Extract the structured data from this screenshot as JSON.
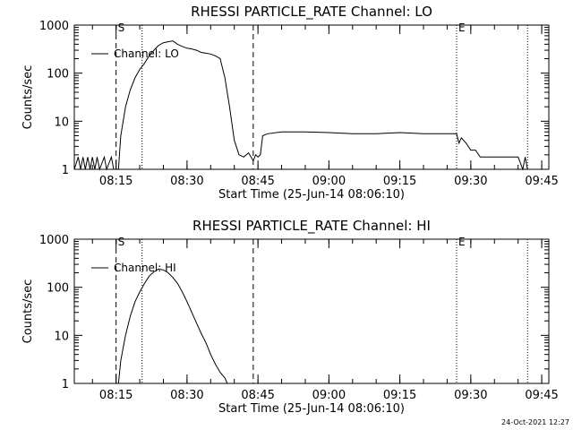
{
  "footer": {
    "timestamp": "24-Oct-2021 12:27"
  },
  "chart_data": [
    {
      "type": "line",
      "title": "RHESSI PARTICLE_RATE Channel: LO",
      "xlabel": "Start Time (25-Jun-14 08:06:10)",
      "ylabel": "Counts/sec",
      "y_scale": "log",
      "ylim": [
        1,
        1000
      ],
      "xlim": [
        "08:06:10",
        "09:46:30"
      ],
      "x_ticks": [
        "08:15",
        "08:30",
        "08:45",
        "09:00",
        "09:15",
        "09:30",
        "09:45"
      ],
      "y_ticks": [
        "1",
        "10",
        "100",
        "1000"
      ],
      "legend": {
        "position": "top-left",
        "label": "Channel: LO"
      },
      "markers": [
        {
          "time": "08:15:00",
          "style": "dashed",
          "label": "S"
        },
        {
          "time": "08:20:30",
          "style": "dotted",
          "label": ""
        },
        {
          "time": "08:44:00",
          "style": "dashed",
          "label": ""
        },
        {
          "time": "09:27:00",
          "style": "dotted",
          "label": "E"
        },
        {
          "time": "09:42:00",
          "style": "dotted",
          "label": ""
        }
      ],
      "series": [
        {
          "name": "Channel: LO",
          "points": [
            [
              "08:06:10",
              1
            ],
            [
              "08:07:00",
              1.8
            ],
            [
              "08:07:30",
              1
            ],
            [
              "08:08:00",
              1.8
            ],
            [
              "08:08:30",
              1
            ],
            [
              "08:09:00",
              1.8
            ],
            [
              "08:09:30",
              1
            ],
            [
              "08:10:00",
              1.8
            ],
            [
              "08:10:30",
              1
            ],
            [
              "08:11:00",
              1.8
            ],
            [
              "08:11:30",
              1
            ],
            [
              "08:12:30",
              1.8
            ],
            [
              "08:13:00",
              1
            ],
            [
              "08:14:00",
              1.8
            ],
            [
              "08:14:30",
              1
            ],
            [
              "08:15:30",
              1
            ],
            [
              "08:16:00",
              5
            ],
            [
              "08:17:00",
              20
            ],
            [
              "08:18:00",
              45
            ],
            [
              "08:19:00",
              80
            ],
            [
              "08:20:00",
              120
            ],
            [
              "08:21:00",
              160
            ],
            [
              "08:22:00",
              230
            ],
            [
              "08:23:00",
              300
            ],
            [
              "08:24:00",
              380
            ],
            [
              "08:25:00",
              430
            ],
            [
              "08:26:00",
              450
            ],
            [
              "08:27:00",
              470
            ],
            [
              "08:28:00",
              400
            ],
            [
              "08:29:00",
              360
            ],
            [
              "08:30:00",
              330
            ],
            [
              "08:31:00",
              320
            ],
            [
              "08:32:00",
              300
            ],
            [
              "08:33:00",
              270
            ],
            [
              "08:34:00",
              260
            ],
            [
              "08:35:00",
              250
            ],
            [
              "08:36:00",
              230
            ],
            [
              "08:37:00",
              200
            ],
            [
              "08:38:00",
              80
            ],
            [
              "08:39:00",
              20
            ],
            [
              "08:40:00",
              4
            ],
            [
              "08:41:00",
              2
            ],
            [
              "08:42:00",
              1.8
            ],
            [
              "08:43:00",
              2.2
            ],
            [
              "08:44:00",
              1.5
            ],
            [
              "08:44:30",
              2
            ],
            [
              "08:45:00",
              1.8
            ],
            [
              "08:45:30",
              2
            ],
            [
              "08:46:00",
              5
            ],
            [
              "08:47:00",
              5.5
            ],
            [
              "08:50:00",
              6
            ],
            [
              "08:55:00",
              6
            ],
            [
              "09:00:00",
              5.8
            ],
            [
              "09:05:00",
              5.5
            ],
            [
              "09:10:00",
              5.5
            ],
            [
              "09:15:00",
              5.8
            ],
            [
              "09:20:00",
              5.5
            ],
            [
              "09:25:00",
              5.5
            ],
            [
              "09:27:00",
              5.5
            ],
            [
              "09:27:30",
              3.5
            ],
            [
              "09:28:00",
              4.5
            ],
            [
              "09:29:00",
              3.5
            ],
            [
              "09:30:00",
              2.5
            ],
            [
              "09:31:00",
              2.5
            ],
            [
              "09:32:00",
              1.8
            ],
            [
              "09:40:00",
              1.8
            ],
            [
              "09:41:00",
              1
            ],
            [
              "09:41:30",
              1.8
            ],
            [
              "09:42:00",
              1
            ]
          ]
        }
      ]
    },
    {
      "type": "line",
      "title": "RHESSI PARTICLE_RATE Channel: HI",
      "xlabel": "Start Time (25-Jun-14 08:06:10)",
      "ylabel": "Counts/sec",
      "y_scale": "log",
      "ylim": [
        1,
        1000
      ],
      "xlim": [
        "08:06:10",
        "09:46:30"
      ],
      "x_ticks": [
        "08:15",
        "08:30",
        "08:45",
        "09:00",
        "09:15",
        "09:30",
        "09:45"
      ],
      "y_ticks": [
        "1",
        "10",
        "100",
        "1000"
      ],
      "legend": {
        "position": "top-left",
        "label": "Channel: HI"
      },
      "markers": [
        {
          "time": "08:15:00",
          "style": "dashed",
          "label": "S"
        },
        {
          "time": "08:20:30",
          "style": "dotted",
          "label": ""
        },
        {
          "time": "08:44:00",
          "style": "dashed",
          "label": ""
        },
        {
          "time": "09:27:00",
          "style": "dotted",
          "label": "E"
        },
        {
          "time": "09:42:00",
          "style": "dotted",
          "label": ""
        }
      ],
      "series": [
        {
          "name": "Channel: HI",
          "points": [
            [
              "08:15:30",
              1
            ],
            [
              "08:16:00",
              3
            ],
            [
              "08:17:00",
              10
            ],
            [
              "08:18:00",
              25
            ],
            [
              "08:19:00",
              50
            ],
            [
              "08:20:00",
              80
            ],
            [
              "08:21:00",
              120
            ],
            [
              "08:22:00",
              170
            ],
            [
              "08:23:00",
              210
            ],
            [
              "08:24:00",
              240
            ],
            [
              "08:25:00",
              230
            ],
            [
              "08:26:00",
              200
            ],
            [
              "08:27:00",
              160
            ],
            [
              "08:28:00",
              120
            ],
            [
              "08:29:00",
              80
            ],
            [
              "08:30:00",
              50
            ],
            [
              "08:31:00",
              30
            ],
            [
              "08:32:00",
              18
            ],
            [
              "08:33:00",
              11
            ],
            [
              "08:34:00",
              7
            ],
            [
              "08:35:00",
              4
            ],
            [
              "08:36:00",
              2.5
            ],
            [
              "08:37:00",
              1.7
            ],
            [
              "08:38:00",
              1.3
            ],
            [
              "08:38:30",
              1
            ]
          ]
        }
      ]
    }
  ]
}
